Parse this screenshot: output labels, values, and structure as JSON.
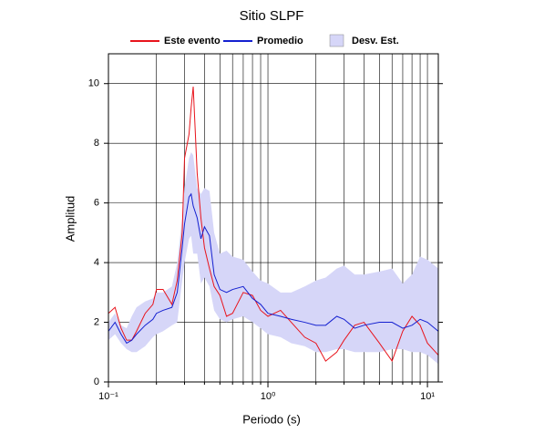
{
  "chart_data": {
    "type": "line",
    "title": "Sitio SLPF",
    "x_label": "Periodo (s)",
    "y_label": "Amplitud",
    "log_x": true,
    "grid": true,
    "xlim": [
      0.1,
      11.7
    ],
    "ylim": [
      0,
      11
    ],
    "xticks": [
      {
        "value": 0.1,
        "label": "10⁻¹"
      },
      {
        "value": 1,
        "label": "10⁰"
      },
      {
        "value": 10,
        "label": "10¹"
      }
    ],
    "xminor": [
      0.2,
      0.3,
      0.4,
      0.5,
      0.6,
      0.7,
      0.8,
      0.9,
      2,
      3,
      4,
      5,
      6,
      7,
      8,
      9
    ],
    "yticks": [
      0,
      2,
      4,
      6,
      8,
      10
    ],
    "x": [
      0.1,
      0.11,
      0.12,
      0.13,
      0.14,
      0.15,
      0.17,
      0.19,
      0.2,
      0.22,
      0.25,
      0.27,
      0.29,
      0.3,
      0.32,
      0.33,
      0.34,
      0.36,
      0.38,
      0.4,
      0.43,
      0.46,
      0.5,
      0.55,
      0.6,
      0.7,
      0.8,
      0.9,
      1.0,
      1.2,
      1.4,
      1.7,
      2,
      2.3,
      2.7,
      3,
      3.5,
      4,
      5,
      6,
      7,
      8,
      9,
      10,
      11.7
    ],
    "series": [
      {
        "name": "Desv. Est.",
        "type": "band",
        "color": "#d6d6f8",
        "upper": [
          2.0,
          2.3,
          1.9,
          1.8,
          2.2,
          2.5,
          2.7,
          2.8,
          3.0,
          3.0,
          3.2,
          4.0,
          5.5,
          6.5,
          7.5,
          7.7,
          7.6,
          6.5,
          6.3,
          6.5,
          6.4,
          5.0,
          4.3,
          4.4,
          4.2,
          4.1,
          3.7,
          3.4,
          3.3,
          3.0,
          3.0,
          3.2,
          3.4,
          3.5,
          3.8,
          3.9,
          3.6,
          3.6,
          3.7,
          3.8,
          3.3,
          3.6,
          4.2,
          4.1,
          3.8
        ],
        "lower": [
          1.4,
          1.6,
          1.3,
          1.1,
          1.0,
          1.0,
          1.2,
          1.5,
          1.6,
          1.7,
          1.9,
          2.0,
          3.4,
          4.0,
          4.8,
          4.9,
          4.3,
          4.3,
          3.3,
          3.5,
          3.2,
          2.4,
          2.1,
          2.0,
          2.1,
          2.2,
          2.0,
          1.8,
          1.6,
          1.5,
          1.3,
          1.2,
          1.0,
          1.0,
          1.1,
          1.1,
          1.0,
          1.0,
          1.0,
          1.1,
          1.1,
          1.0,
          1.0,
          0.9,
          0.6
        ]
      },
      {
        "name": "Este evento",
        "color": "#e8141c",
        "values": [
          2.3,
          2.5,
          1.8,
          1.4,
          1.4,
          1.7,
          2.3,
          2.6,
          3.1,
          3.1,
          2.6,
          3.4,
          5.0,
          7.5,
          8.3,
          9.2,
          9.9,
          7.0,
          5.5,
          4.5,
          3.8,
          3.2,
          2.9,
          2.2,
          2.3,
          3.0,
          2.9,
          2.4,
          2.2,
          2.4,
          2.0,
          1.5,
          1.3,
          0.7,
          1.0,
          1.4,
          1.9,
          2.0,
          1.3,
          0.7,
          1.7,
          2.2,
          1.9,
          1.3,
          0.9
        ]
      },
      {
        "name": "Promedio",
        "color": "#1420d0",
        "values": [
          1.7,
          2.0,
          1.6,
          1.3,
          1.4,
          1.6,
          1.9,
          2.1,
          2.3,
          2.4,
          2.5,
          3.0,
          4.5,
          5.3,
          6.2,
          6.3,
          5.9,
          5.5,
          4.8,
          5.2,
          4.9,
          3.6,
          3.1,
          3.0,
          3.1,
          3.2,
          2.8,
          2.6,
          2.3,
          2.2,
          2.1,
          2.0,
          1.9,
          1.9,
          2.2,
          2.1,
          1.8,
          1.9,
          2.0,
          2.0,
          1.8,
          1.9,
          2.1,
          2.0,
          1.7
        ]
      }
    ]
  }
}
